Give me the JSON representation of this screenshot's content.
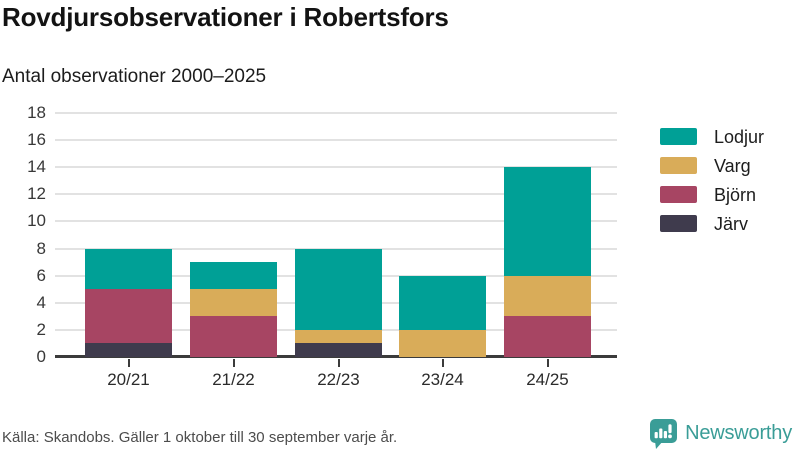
{
  "header": {
    "title": "Rovdjursobservationer i Robertsfors",
    "subtitle": "Antal observationer 2000–2025"
  },
  "chart_data": {
    "type": "bar",
    "stacked": true,
    "title": "Rovdjursobservationer i Robertsfors",
    "subtitle": "Antal observationer 2000–2025",
    "categories": [
      "20/21",
      "21/22",
      "22/23",
      "23/24",
      "24/25"
    ],
    "series": [
      {
        "name": "Järv",
        "color": "#3F3B4D",
        "values": [
          1,
          0,
          1,
          0,
          0
        ]
      },
      {
        "name": "Björn",
        "color": "#A74563",
        "values": [
          4,
          3,
          0,
          0,
          3
        ]
      },
      {
        "name": "Varg",
        "color": "#D9AC59",
        "values": [
          0,
          2,
          1,
          2,
          3
        ]
      },
      {
        "name": "Lodjur",
        "color": "#00A096",
        "values": [
          3,
          2,
          6,
          4,
          8
        ]
      }
    ],
    "totals": [
      8,
      7,
      8,
      6,
      14
    ],
    "legend": [
      "Lodjur",
      "Varg",
      "Björn",
      "Järv"
    ],
    "legend_position": "right",
    "y_ticks": [
      0,
      2,
      4,
      6,
      8,
      10,
      12,
      14,
      16,
      18
    ],
    "ylim": [
      0,
      18
    ],
    "xlabel": "",
    "ylabel": "",
    "grid": "horizontal"
  },
  "footer": {
    "source": "Källa: Skandobs. Gäller 1 oktober till 30 september varje år.",
    "brand": "Newsworthy"
  },
  "colors": {
    "lodjur": "#00A096",
    "varg": "#D9AC59",
    "bjorn": "#A74563",
    "jarv": "#3F3B4D",
    "brand_teal": "#3A9D97",
    "grid": "#E2E2E2",
    "axis": "#3B3B3B"
  }
}
